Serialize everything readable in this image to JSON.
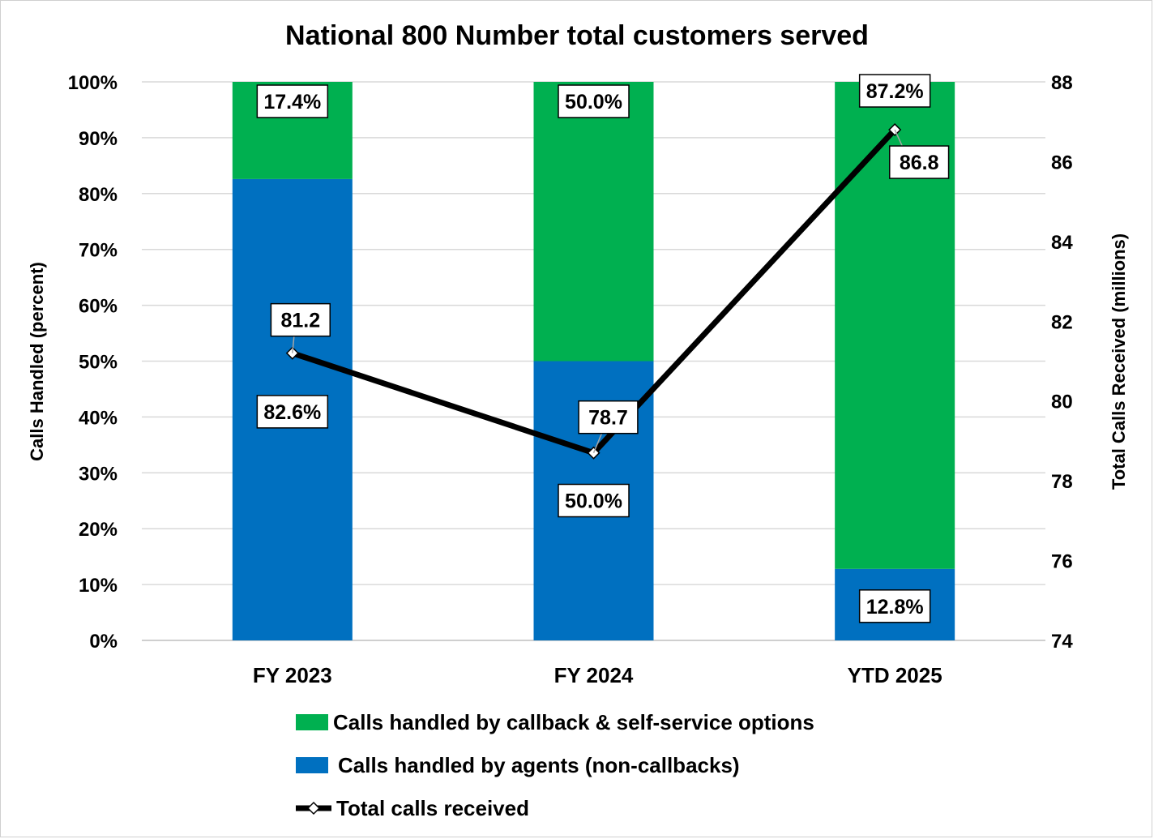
{
  "chart_data": {
    "type": "bar",
    "stacked": true,
    "title": "National 800 Number total customers served",
    "categories": [
      "FY 2023",
      "FY 2024",
      "YTD 2025"
    ],
    "ylabel": "Calls Handled (percent)",
    "y2label": "Total Calls Received (millions)",
    "ylim": [
      0,
      100
    ],
    "y2lim": [
      74,
      88
    ],
    "yticks": [
      "0%",
      "10%",
      "20%",
      "30%",
      "40%",
      "50%",
      "60%",
      "70%",
      "80%",
      "90%",
      "100%"
    ],
    "y2ticks": [
      "74",
      "76",
      "78",
      "80",
      "82",
      "84",
      "86",
      "88"
    ],
    "series": [
      {
        "name": "Calls handled by agents (non-callbacks)",
        "kind": "bar",
        "color": "#0070c0",
        "values": [
          82.6,
          50.0,
          12.8
        ],
        "labels": [
          "82.6%",
          "50.0%",
          "12.8%"
        ]
      },
      {
        "name": "Calls handled by callback & self-service options",
        "kind": "bar",
        "color": "#00b050",
        "values": [
          17.4,
          50.0,
          87.2
        ],
        "labels": [
          "17.4%",
          "50.0%",
          "87.2%"
        ]
      },
      {
        "name": "Total calls received",
        "kind": "line",
        "axis": "secondary",
        "color": "#000000",
        "values": [
          81.2,
          78.7,
          86.8
        ],
        "labels": [
          "81.2",
          "78.7",
          "86.8"
        ]
      }
    ],
    "legend": [
      "Calls handled by callback & self-service options",
      "Calls handled by agents (non-callbacks)",
      "Total calls received"
    ],
    "legend_position": "bottom",
    "grid": true
  }
}
